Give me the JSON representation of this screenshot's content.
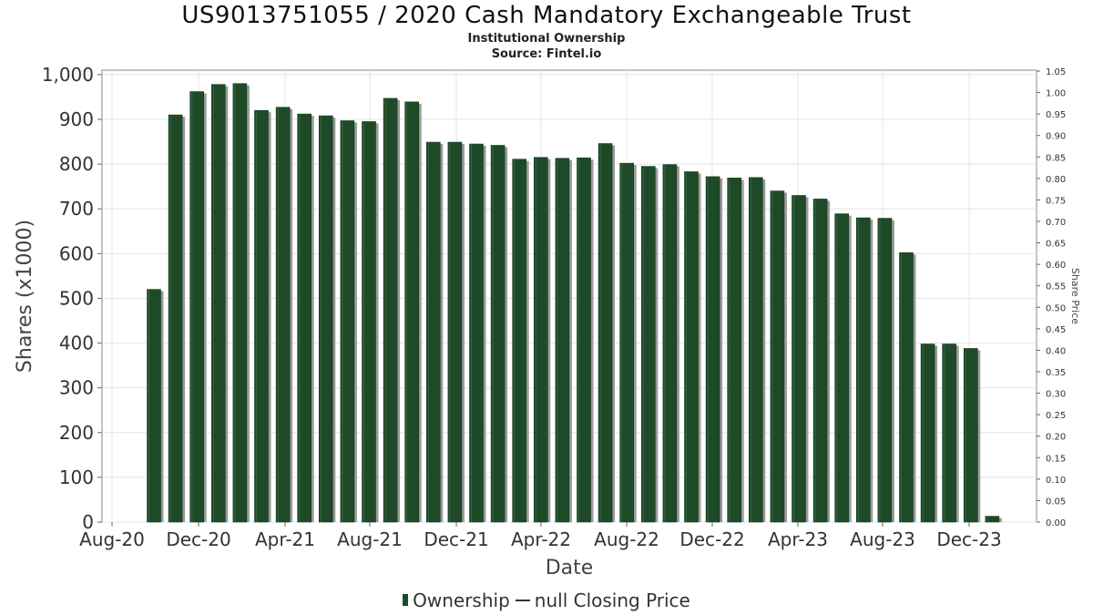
{
  "title": "US9013751055 / 2020 Cash Mandatory Exchangeable Trust",
  "subtitle": "Institutional Ownership",
  "source": "Source: Fintel.io",
  "colors": {
    "bar": "#1e4a28",
    "bar_shadow": "#9a9a9a",
    "grid": "#e4e4e4",
    "axis": "#888888"
  },
  "legend": {
    "ownership": "Ownership",
    "price": "null Closing Price"
  },
  "chart_data": {
    "type": "bar",
    "title": "US9013751055 / 2020 Cash Mandatory Exchangeable Trust",
    "subtitle": "Institutional Ownership",
    "xlabel": "Date",
    "ylabel": "Shares (x1000)",
    "y2label": "Share Price",
    "x_tick_labels": [
      "Aug-20",
      "Dec-20",
      "Apr-21",
      "Aug-21",
      "Dec-21",
      "Apr-22",
      "Aug-22",
      "Dec-22",
      "Apr-23",
      "Aug-23",
      "Dec-23"
    ],
    "y_ticks": [
      "0",
      "100",
      "200",
      "300",
      "400",
      "500",
      "600",
      "700",
      "800",
      "900",
      "1,000"
    ],
    "y2_ticks": [
      "0.00",
      "0.05",
      "0.10",
      "0.15",
      "0.20",
      "0.25",
      "0.30",
      "0.35",
      "0.40",
      "0.45",
      "0.50",
      "0.55",
      "0.60",
      "0.65",
      "0.70",
      "0.75",
      "0.80",
      "0.85",
      "0.90",
      "0.95",
      "1.00",
      "1.05"
    ],
    "ylim": [
      0,
      1010
    ],
    "y2lim": [
      0,
      1.05
    ],
    "grid": true,
    "legend_position": "bottom",
    "series": [
      {
        "name": "Ownership",
        "values": [
          520,
          910,
          962,
          978,
          980,
          920,
          927,
          912,
          908,
          897,
          895,
          947,
          939,
          849,
          849,
          845,
          842,
          811,
          815,
          813,
          814,
          846,
          802,
          795,
          799,
          783,
          772,
          769,
          770,
          740,
          730,
          722,
          689,
          680,
          679,
          602,
          398,
          398,
          388,
          13
        ]
      }
    ]
  }
}
